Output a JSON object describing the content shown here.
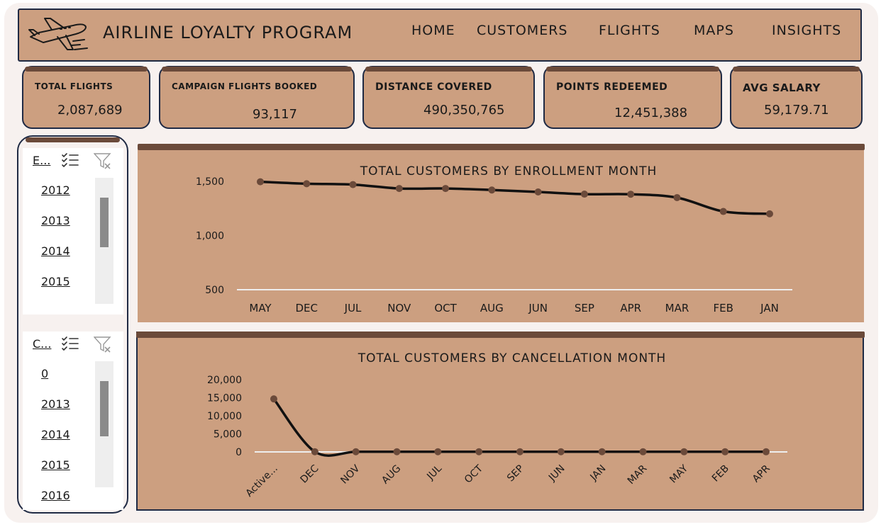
{
  "header": {
    "title": "AIRLINE LOYALTY PROGRAM",
    "nav": [
      "HOME",
      "CUSTOMERS",
      "FLIGHTS",
      "MAPS",
      "INSIGHTS"
    ]
  },
  "kpis": [
    {
      "label": "TOTAL FLIGHTS",
      "value": "2,087,689"
    },
    {
      "label": "CAMPAIGN  FLIGHTS BOOKED",
      "value": "93,117"
    },
    {
      "label": "DISTANCE COVERED",
      "value": "490,350,765"
    },
    {
      "label": "POINTS REDEEMED",
      "value": "12,451,388"
    },
    {
      "label": "AVG SALARY",
      "value": "59,179.71"
    }
  ],
  "slicers": [
    {
      "title": "E...",
      "items": [
        "2012",
        "2013",
        "2014",
        "2015"
      ]
    },
    {
      "title": "C...",
      "items": [
        "0",
        "2013",
        "2014",
        "2015",
        "2016"
      ]
    }
  ],
  "colors": {
    "panel": "#cc9f80",
    "accent_bar": "#6b4a3a",
    "marker": "#6b4a3a",
    "line": "#111111",
    "border": "#1f2a44"
  },
  "chart_data": [
    {
      "type": "line",
      "title": "TOTAL CUSTOMERS BY ENROLLMENT MONTH",
      "categories": [
        "MAY",
        "DEC",
        "JUL",
        "NOV",
        "OCT",
        "AUG",
        "JUN",
        "SEP",
        "APR",
        "MAR",
        "FEB",
        "JAN"
      ],
      "values": [
        1496,
        1478,
        1470,
        1434,
        1434,
        1420,
        1402,
        1382,
        1381,
        1350,
        1222,
        1200
      ],
      "ylim": [
        500,
        1500
      ],
      "yticks": [
        "1,500",
        "1,000",
        "500"
      ],
      "grid": false
    },
    {
      "type": "line",
      "title": "TOTAL CUSTOMERS BY CANCELLATION MONTH",
      "categories": [
        "Active...",
        "DEC",
        "NOV",
        "AUG",
        "JUL",
        "OCT",
        "SEP",
        "JUN",
        "JAN",
        "MAR",
        "MAY",
        "FEB",
        "APR"
      ],
      "values": [
        14670,
        58,
        53,
        48,
        46,
        45,
        45,
        44,
        44,
        42,
        41,
        40,
        39
      ],
      "ylim": [
        0,
        20000
      ],
      "yticks": [
        "20,000",
        "15,000",
        "10,000",
        "5,000",
        "0"
      ],
      "grid": false
    }
  ]
}
